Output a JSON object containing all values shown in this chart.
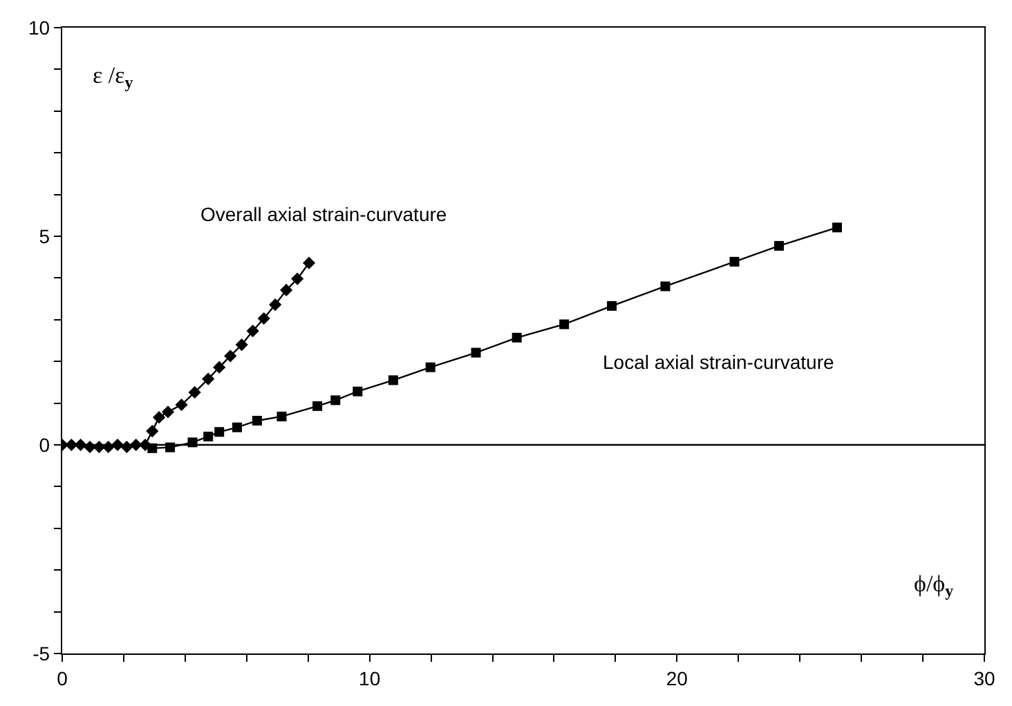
{
  "chart_data": {
    "type": "line",
    "xlabel": "ϕ/ϕ$_{y}$",
    "ylabel": "ε /ε$_{y}$",
    "series": [
      {
        "name": "Overall axial strain-curvature",
        "color": "#000000",
        "marker": "diamond",
        "x": [
          0,
          0.3,
          0.6,
          0.9,
          1.2,
          1.5,
          1.8,
          2.1,
          2.4,
          2.7,
          2.93,
          3.15,
          3.44,
          3.88,
          4.31,
          4.75,
          5.11,
          5.47,
          5.84,
          6.2,
          6.56,
          6.93,
          7.29,
          7.65,
          8.03
        ],
        "values": [
          0,
          0,
          0,
          -0.05,
          -0.05,
          -0.05,
          0,
          -0.05,
          0,
          0,
          0.33,
          0.66,
          0.79,
          0.96,
          1.26,
          1.58,
          1.86,
          2.13,
          2.4,
          2.73,
          3.03,
          3.36,
          3.71,
          3.98,
          4.36
        ]
      },
      {
        "name": "Local axial strain-curvature",
        "color": "#000000",
        "marker": "square",
        "x": [
          2.93,
          3.51,
          4.24,
          4.75,
          5.11,
          5.69,
          6.34,
          7.14,
          8.3,
          8.89,
          9.61,
          10.77,
          11.98,
          13.46,
          14.79,
          16.33,
          17.88,
          19.62,
          21.87,
          23.32,
          25.21
        ],
        "values": [
          -0.08,
          -0.06,
          0.06,
          0.2,
          0.31,
          0.42,
          0.58,
          0.68,
          0.93,
          1.07,
          1.28,
          1.55,
          1.86,
          2.21,
          2.57,
          2.89,
          3.33,
          3.8,
          4.39,
          4.77,
          5.21
        ]
      }
    ],
    "xlim": [
      0,
      30
    ],
    "xticks": [
      0,
      {
        "value": 2,
        "label": null
      },
      {
        "value": 4,
        "label": null
      },
      {
        "value": 6,
        "label": null
      },
      {
        "value": 8,
        "label": null
      },
      10,
      {
        "value": 12,
        "label": null
      },
      {
        "value": 14,
        "label": null
      },
      {
        "value": 16,
        "label": null
      },
      {
        "value": 18,
        "label": null
      },
      20,
      {
        "value": 22,
        "label": null
      },
      {
        "value": 24,
        "label": null
      },
      {
        "value": 26,
        "label": null
      },
      {
        "value": 28,
        "label": null
      },
      30
    ],
    "ylim": [
      -5,
      10
    ],
    "yticks": [
      -5,
      {
        "value": -4,
        "label": null
      },
      {
        "value": -3,
        "label": null
      },
      {
        "value": -2,
        "label": null
      },
      {
        "value": -1,
        "label": null
      },
      0,
      {
        "value": 1,
        "label": null
      },
      {
        "value": 2,
        "label": null
      },
      {
        "value": 3,
        "label": null
      },
      {
        "value": 4,
        "label": null
      },
      5,
      {
        "value": 6,
        "label": null
      },
      {
        "value": 7,
        "label": null
      },
      {
        "value": 8,
        "label": null
      },
      {
        "value": 9,
        "label": null
      },
      10
    ],
    "ref_lines": [
      {
        "axis": "y",
        "value": 0,
        "color": "#000000"
      }
    ],
    "legend": false
  }
}
